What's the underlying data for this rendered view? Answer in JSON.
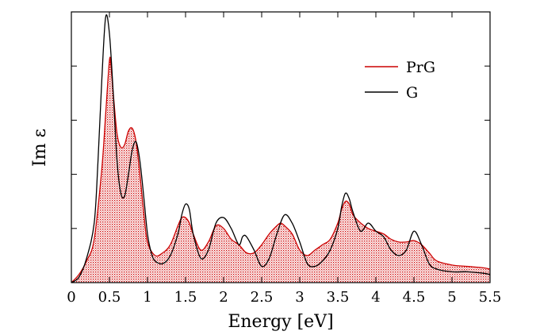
{
  "chart_data": {
    "type": "line",
    "title": "",
    "xlabel": "Energy [eV]",
    "ylabel": "Im ε",
    "xlim": [
      0,
      5.5
    ],
    "ylim": [
      0,
      1.0
    ],
    "x_ticks": [
      0,
      0.5,
      1,
      1.5,
      2,
      2.5,
      3,
      3.5,
      4,
      4.5,
      5,
      5.5
    ],
    "x_tick_labels": [
      "0",
      "0.5",
      "1",
      "1.5",
      "2",
      "2.5",
      "3",
      "3.5",
      "4",
      "4.5",
      "5",
      "5.5"
    ],
    "y_ticks": [
      0.2,
      0.4,
      0.6,
      0.8
    ],
    "y_tick_labels_visible": false,
    "legend_position": "top-right",
    "series": [
      {
        "name": "PrG",
        "color": "#cc0000",
        "filled": true,
        "fill_pattern": "dotted",
        "x": [
          0,
          0.1,
          0.2,
          0.3,
          0.4,
          0.45,
          0.5,
          0.52,
          0.55,
          0.6,
          0.65,
          0.7,
          0.75,
          0.8,
          0.85,
          0.9,
          0.95,
          1.0,
          1.1,
          1.2,
          1.3,
          1.4,
          1.45,
          1.5,
          1.55,
          1.6,
          1.7,
          1.8,
          1.9,
          2.0,
          2.1,
          2.2,
          2.3,
          2.4,
          2.5,
          2.6,
          2.7,
          2.75,
          2.8,
          2.9,
          3.0,
          3.1,
          3.2,
          3.3,
          3.4,
          3.5,
          3.55,
          3.6,
          3.65,
          3.7,
          3.8,
          3.9,
          4.0,
          4.1,
          4.2,
          4.3,
          4.4,
          4.5,
          4.6,
          4.7,
          4.8,
          5.0,
          5.2,
          5.4,
          5.5
        ],
        "y": [
          0.0,
          0.03,
          0.08,
          0.16,
          0.42,
          0.62,
          0.82,
          0.8,
          0.7,
          0.55,
          0.5,
          0.51,
          0.56,
          0.57,
          0.52,
          0.4,
          0.26,
          0.15,
          0.1,
          0.11,
          0.14,
          0.21,
          0.24,
          0.24,
          0.22,
          0.18,
          0.12,
          0.15,
          0.21,
          0.2,
          0.16,
          0.14,
          0.11,
          0.11,
          0.14,
          0.18,
          0.21,
          0.22,
          0.21,
          0.18,
          0.12,
          0.1,
          0.12,
          0.14,
          0.16,
          0.22,
          0.27,
          0.3,
          0.29,
          0.25,
          0.22,
          0.2,
          0.19,
          0.18,
          0.16,
          0.15,
          0.15,
          0.155,
          0.14,
          0.11,
          0.08,
          0.065,
          0.06,
          0.055,
          0.05
        ]
      },
      {
        "name": "G",
        "color": "#000000",
        "filled": false,
        "x": [
          0,
          0.1,
          0.2,
          0.3,
          0.35,
          0.4,
          0.45,
          0.5,
          0.55,
          0.6,
          0.65,
          0.7,
          0.75,
          0.8,
          0.85,
          0.9,
          0.95,
          1.0,
          1.05,
          1.1,
          1.2,
          1.3,
          1.4,
          1.45,
          1.5,
          1.55,
          1.6,
          1.7,
          1.8,
          1.9,
          2.0,
          2.1,
          2.2,
          2.25,
          2.3,
          2.4,
          2.5,
          2.6,
          2.7,
          2.8,
          2.9,
          3.0,
          3.1,
          3.2,
          3.3,
          3.4,
          3.5,
          3.55,
          3.6,
          3.65,
          3.7,
          3.8,
          3.9,
          4.0,
          4.1,
          4.2,
          4.3,
          4.4,
          4.5,
          4.6,
          4.7,
          4.8,
          5.0,
          5.2,
          5.4,
          5.5
        ],
        "y": [
          0.0,
          0.02,
          0.09,
          0.22,
          0.45,
          0.75,
          0.98,
          0.92,
          0.7,
          0.45,
          0.33,
          0.32,
          0.4,
          0.49,
          0.52,
          0.45,
          0.32,
          0.18,
          0.11,
          0.08,
          0.07,
          0.1,
          0.18,
          0.25,
          0.29,
          0.27,
          0.18,
          0.09,
          0.12,
          0.22,
          0.24,
          0.2,
          0.14,
          0.17,
          0.17,
          0.12,
          0.06,
          0.09,
          0.18,
          0.25,
          0.22,
          0.15,
          0.07,
          0.06,
          0.08,
          0.12,
          0.2,
          0.28,
          0.33,
          0.31,
          0.26,
          0.19,
          0.22,
          0.19,
          0.17,
          0.12,
          0.1,
          0.12,
          0.19,
          0.14,
          0.07,
          0.05,
          0.04,
          0.04,
          0.035,
          0.03
        ]
      }
    ]
  }
}
